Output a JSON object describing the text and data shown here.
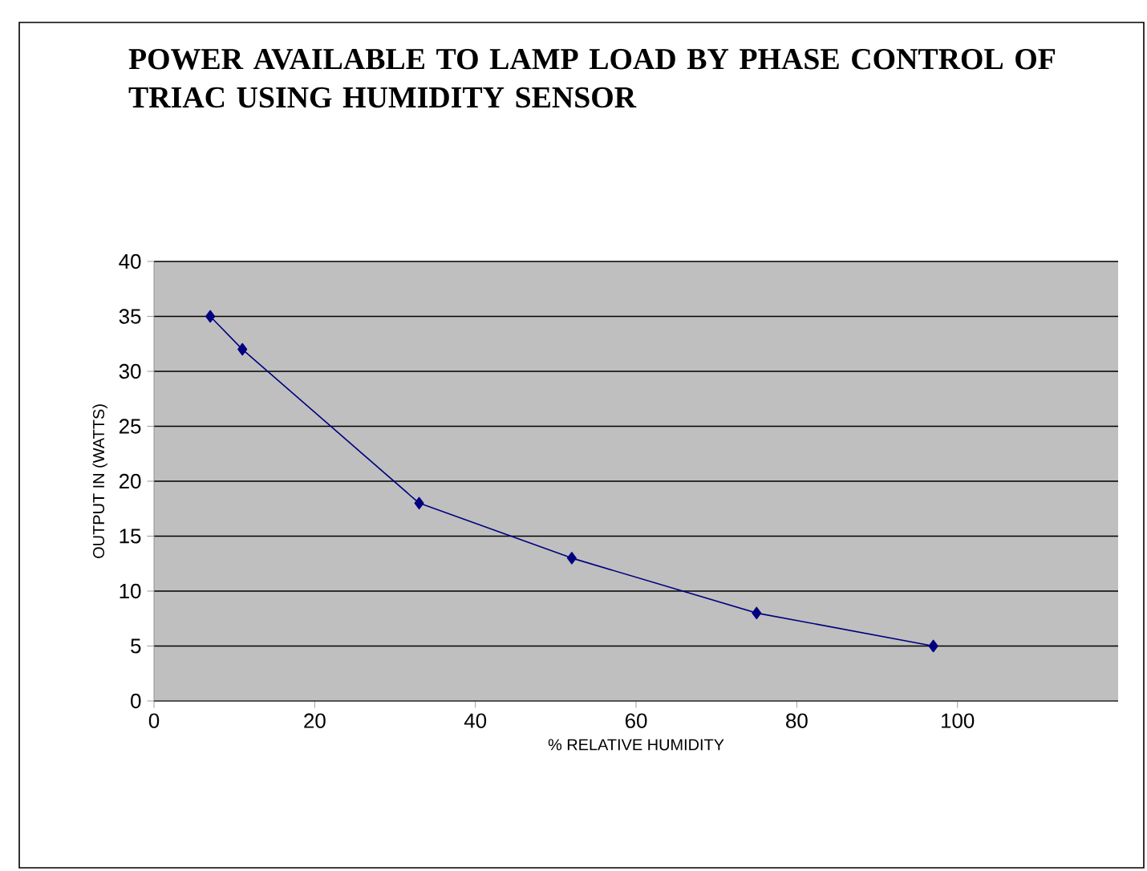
{
  "chart_data": {
    "type": "line",
    "title": "POWER AVAILABLE TO LAMP LOAD BY PHASE CONTROL OF TRIAC USING HUMIDITY SENSOR",
    "xlabel": "% RELATIVE HUMIDITY",
    "ylabel": "OUTPUT IN (WATTS)",
    "x": [
      7,
      11,
      33,
      52,
      75,
      97
    ],
    "series": [
      {
        "color": "#000080",
        "values": [
          35,
          32,
          18,
          13,
          8,
          5
        ]
      }
    ],
    "xlim": [
      0,
      120
    ],
    "xticks": [
      0,
      20,
      40,
      60,
      80,
      100
    ],
    "ylim": [
      0,
      40
    ],
    "yticks": [
      0,
      5,
      10,
      15,
      20,
      25,
      30,
      35,
      40
    ],
    "grid": "y",
    "marker": "diamond",
    "line_style": "solid"
  }
}
